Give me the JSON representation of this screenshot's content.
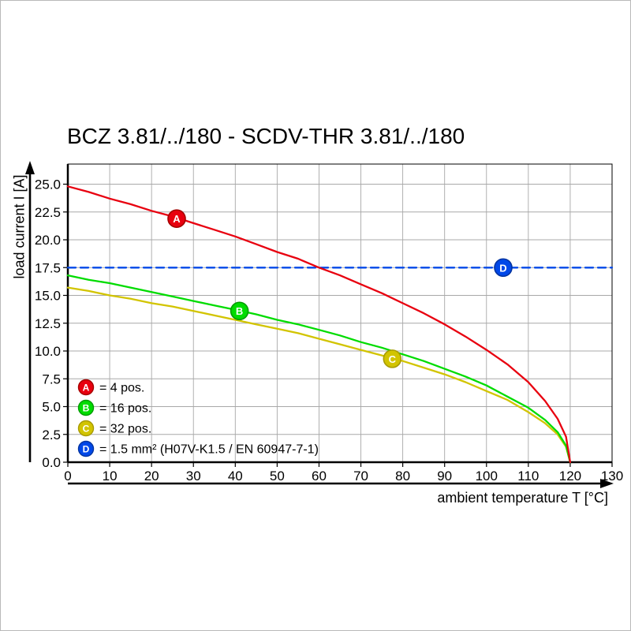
{
  "title": "BCZ 3.81/../180 - SCDV-THR 3.81/../180",
  "chart_data": {
    "type": "line",
    "title": "BCZ 3.81/../180 - SCDV-THR 3.81/../180",
    "xlabel": "ambient temperature T [°C]",
    "ylabel": "load current I [A]",
    "xlim": [
      0,
      130
    ],
    "ylim": [
      0,
      25
    ],
    "xticks": [
      0,
      10,
      20,
      30,
      40,
      50,
      60,
      70,
      80,
      90,
      100,
      110,
      120,
      130
    ],
    "yticks": [
      0,
      2.5,
      5,
      7.5,
      10,
      12.5,
      15,
      17.5,
      20,
      22.5,
      25
    ],
    "ytick_labels": [
      "0.0",
      "2.5",
      "5.0",
      "7.5",
      "10.0",
      "12.5",
      "15.0",
      "17.5",
      "20.0",
      "22.5",
      "25.0"
    ],
    "grid": true,
    "legend_position": "bottom-left",
    "series": [
      {
        "id": "A",
        "legend_label": "= 4 pos.",
        "color": "#e8000f",
        "ring_color": "#a50000",
        "style": "solid",
        "marker_at": [
          26,
          21.9
        ],
        "points": [
          [
            0,
            24.8
          ],
          [
            5,
            24.3
          ],
          [
            10,
            23.7
          ],
          [
            15,
            23.2
          ],
          [
            20,
            22.6
          ],
          [
            25,
            22.1
          ],
          [
            30,
            21.5
          ],
          [
            35,
            20.9
          ],
          [
            40,
            20.3
          ],
          [
            45,
            19.6
          ],
          [
            50,
            18.9
          ],
          [
            55,
            18.3
          ],
          [
            60,
            17.5
          ],
          [
            65,
            16.8
          ],
          [
            70,
            16.0
          ],
          [
            75,
            15.2
          ],
          [
            80,
            14.3
          ],
          [
            85,
            13.4
          ],
          [
            90,
            12.4
          ],
          [
            95,
            11.3
          ],
          [
            100,
            10.1
          ],
          [
            105,
            8.8
          ],
          [
            110,
            7.2
          ],
          [
            114,
            5.5
          ],
          [
            117,
            3.9
          ],
          [
            119,
            2.3
          ],
          [
            120,
            0
          ]
        ]
      },
      {
        "id": "B",
        "legend_label": "= 16 pos.",
        "color": "#00dc00",
        "ring_color": "#009b00",
        "style": "solid",
        "marker_at": [
          41,
          13.6
        ],
        "points": [
          [
            0,
            16.8
          ],
          [
            5,
            16.4
          ],
          [
            10,
            16.1
          ],
          [
            15,
            15.7
          ],
          [
            20,
            15.3
          ],
          [
            25,
            14.9
          ],
          [
            30,
            14.5
          ],
          [
            35,
            14.1
          ],
          [
            40,
            13.7
          ],
          [
            45,
            13.3
          ],
          [
            50,
            12.8
          ],
          [
            55,
            12.4
          ],
          [
            60,
            11.9
          ],
          [
            65,
            11.4
          ],
          [
            70,
            10.8
          ],
          [
            75,
            10.3
          ],
          [
            80,
            9.7
          ],
          [
            85,
            9.1
          ],
          [
            90,
            8.4
          ],
          [
            95,
            7.7
          ],
          [
            100,
            6.9
          ],
          [
            105,
            5.9
          ],
          [
            110,
            4.9
          ],
          [
            114,
            3.8
          ],
          [
            117,
            2.7
          ],
          [
            119,
            1.5
          ],
          [
            120,
            0
          ]
        ]
      },
      {
        "id": "C",
        "legend_label": "= 32 pos.",
        "color": "#d2c400",
        "ring_color": "#a79a00",
        "style": "solid",
        "marker_at": [
          77.5,
          9.3
        ],
        "points": [
          [
            0,
            15.7
          ],
          [
            5,
            15.4
          ],
          [
            10,
            15.0
          ],
          [
            15,
            14.7
          ],
          [
            20,
            14.3
          ],
          [
            25,
            14.0
          ],
          [
            30,
            13.6
          ],
          [
            35,
            13.2
          ],
          [
            40,
            12.8
          ],
          [
            45,
            12.4
          ],
          [
            50,
            12.0
          ],
          [
            55,
            11.6
          ],
          [
            60,
            11.1
          ],
          [
            65,
            10.6
          ],
          [
            70,
            10.1
          ],
          [
            75,
            9.6
          ],
          [
            80,
            9.1
          ],
          [
            85,
            8.5
          ],
          [
            90,
            7.9
          ],
          [
            95,
            7.2
          ],
          [
            100,
            6.4
          ],
          [
            105,
            5.6
          ],
          [
            110,
            4.5
          ],
          [
            114,
            3.5
          ],
          [
            117,
            2.5
          ],
          [
            119,
            1.4
          ],
          [
            120,
            0
          ]
        ]
      },
      {
        "id": "D",
        "legend_label": "= 1.5 mm² (H07V-K1.5 / EN 60947-7-1)",
        "color": "#0048e8",
        "ring_color": "#0033a0",
        "style": "dashed",
        "marker_at": [
          104,
          17.5
        ],
        "points": [
          [
            0,
            17.5
          ],
          [
            130,
            17.5
          ]
        ]
      }
    ]
  }
}
